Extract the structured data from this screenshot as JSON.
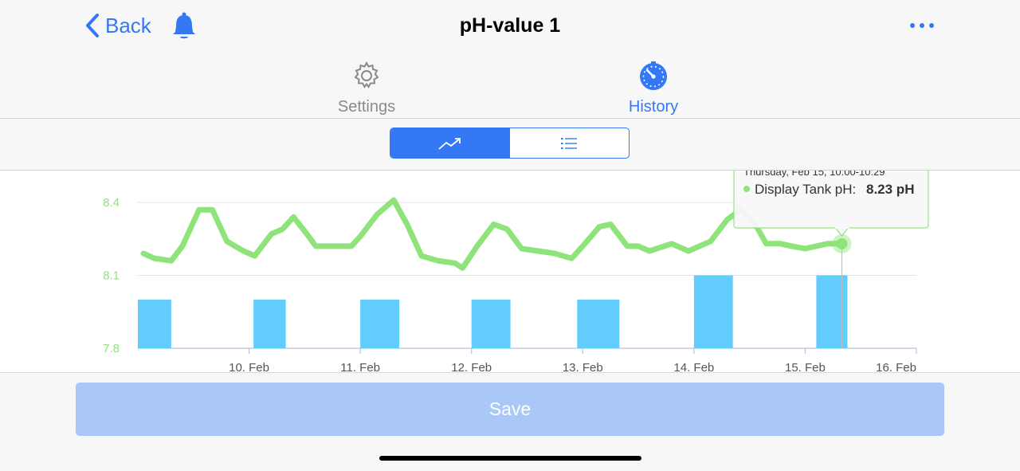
{
  "nav": {
    "back_label": "Back",
    "title": "pH-value 1",
    "bell_icon": "bell-icon",
    "more_icon": "more-horizontal-icon"
  },
  "tabs": [
    {
      "label": "Settings",
      "icon": "gear-icon",
      "active": false
    },
    {
      "label": "History",
      "icon": "stopwatch-icon",
      "active": true
    }
  ],
  "segmented": [
    {
      "icon": "trend-chart-icon",
      "active": true
    },
    {
      "icon": "list-icon",
      "active": false
    }
  ],
  "tooltip": {
    "date_line": "Thursday, Feb 15, 10:00-10:29",
    "series_label": "Display Tank pH:",
    "value_text": "8.23 pH"
  },
  "chart_data": {
    "type": "line",
    "ylim": [
      7.8,
      8.4
    ],
    "y_ticks": [
      "8.4",
      "8.1",
      "7.8"
    ],
    "x_tick_labels": [
      "10. Feb",
      "11. Feb",
      "12. Feb",
      "13. Feb",
      "14. Feb",
      "15. Feb",
      "16. Feb"
    ],
    "x_tick_days": [
      10,
      11,
      12,
      13,
      14,
      15,
      16
    ],
    "grid": true,
    "series": [
      {
        "name": "Display Tank pH",
        "color": "#8ee47a",
        "points": [
          [
            9.05,
            8.19
          ],
          [
            9.15,
            8.17
          ],
          [
            9.3,
            8.16
          ],
          [
            9.4,
            8.22
          ],
          [
            9.55,
            8.37
          ],
          [
            9.67,
            8.37
          ],
          [
            9.8,
            8.24
          ],
          [
            9.95,
            8.2
          ],
          [
            10.05,
            8.18
          ],
          [
            10.2,
            8.27
          ],
          [
            10.3,
            8.29
          ],
          [
            10.4,
            8.34
          ],
          [
            10.52,
            8.27
          ],
          [
            10.6,
            8.22
          ],
          [
            10.75,
            8.22
          ],
          [
            10.92,
            8.22
          ],
          [
            11.0,
            8.26
          ],
          [
            11.15,
            8.35
          ],
          [
            11.3,
            8.41
          ],
          [
            11.42,
            8.31
          ],
          [
            11.55,
            8.18
          ],
          [
            11.7,
            8.16
          ],
          [
            11.85,
            8.15
          ],
          [
            11.92,
            8.13
          ],
          [
            12.05,
            8.22
          ],
          [
            12.2,
            8.31
          ],
          [
            12.32,
            8.29
          ],
          [
            12.45,
            8.21
          ],
          [
            12.6,
            8.2
          ],
          [
            12.75,
            8.19
          ],
          [
            12.9,
            8.17
          ],
          [
            13.0,
            8.22
          ],
          [
            13.15,
            8.3
          ],
          [
            13.25,
            8.31
          ],
          [
            13.4,
            8.22
          ],
          [
            13.5,
            8.22
          ],
          [
            13.6,
            8.2
          ],
          [
            13.8,
            8.23
          ],
          [
            13.95,
            8.2
          ],
          [
            14.15,
            8.24
          ],
          [
            14.3,
            8.33
          ],
          [
            14.42,
            8.37
          ],
          [
            14.55,
            8.31
          ],
          [
            14.65,
            8.23
          ],
          [
            14.78,
            8.23
          ],
          [
            14.88,
            8.22
          ],
          [
            15.0,
            8.21
          ],
          [
            15.2,
            8.23
          ],
          [
            15.33,
            8.23
          ]
        ]
      },
      {
        "name": "bars",
        "type": "bar",
        "color": "#62cdfc",
        "bars": [
          {
            "x_start": 9.0,
            "x_end": 9.3,
            "value": 8.0
          },
          {
            "x_start": 10.04,
            "x_end": 10.33,
            "value": 8.0
          },
          {
            "x_start": 11.0,
            "x_end": 11.35,
            "value": 8.0
          },
          {
            "x_start": 12.0,
            "x_end": 12.35,
            "value": 8.0
          },
          {
            "x_start": 12.95,
            "x_end": 13.33,
            "value": 8.0
          },
          {
            "x_start": 14.0,
            "x_end": 14.35,
            "value": 8.1
          },
          {
            "x_start": 15.1,
            "x_end": 15.38,
            "value": 8.1
          }
        ]
      }
    ],
    "highlight": {
      "x": 15.33,
      "y": 8.23
    }
  },
  "save_label": "Save"
}
